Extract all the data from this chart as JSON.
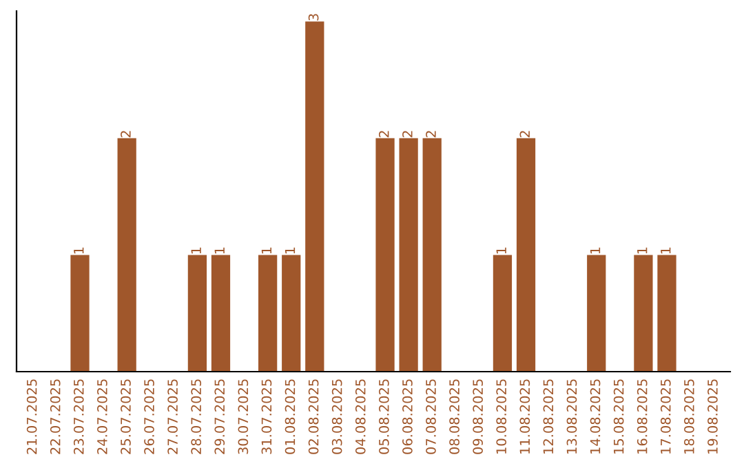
{
  "chart_data": {
    "type": "bar",
    "categories": [
      "21.07.2025",
      "22.07.2025",
      "23.07.2025",
      "24.07.2025",
      "25.07.2025",
      "26.07.2025",
      "27.07.2025",
      "28.07.2025",
      "29.07.2025",
      "30.07.2025",
      "31.07.2025",
      "01.08.2025",
      "02.08.2025",
      "03.08.2025",
      "04.08.2025",
      "05.08.2025",
      "06.08.2025",
      "07.08.2025",
      "08.08.2025",
      "09.08.2025",
      "10.08.2025",
      "11.08.2025",
      "12.08.2025",
      "13.08.2025",
      "14.08.2025",
      "15.08.2025",
      "16.08.2025",
      "17.08.2025",
      "18.08.2025",
      "19.08.2025"
    ],
    "values": [
      0,
      0,
      1,
      0,
      2,
      0,
      0,
      1,
      1,
      0,
      1,
      1,
      3,
      0,
      0,
      2,
      2,
      2,
      0,
      0,
      1,
      2,
      0,
      0,
      1,
      0,
      1,
      1,
      0,
      0
    ],
    "value_labels": [
      null,
      null,
      "1",
      null,
      "2",
      null,
      null,
      "1",
      "1",
      null,
      "1",
      "1",
      "3",
      null,
      null,
      "2",
      "2",
      "2",
      null,
      null,
      "1",
      "2",
      null,
      null,
      "1",
      null,
      "1",
      "1",
      null,
      null
    ],
    "color": "#a0572b",
    "grid": false,
    "legend": false,
    "tick_labels": "x"
  }
}
